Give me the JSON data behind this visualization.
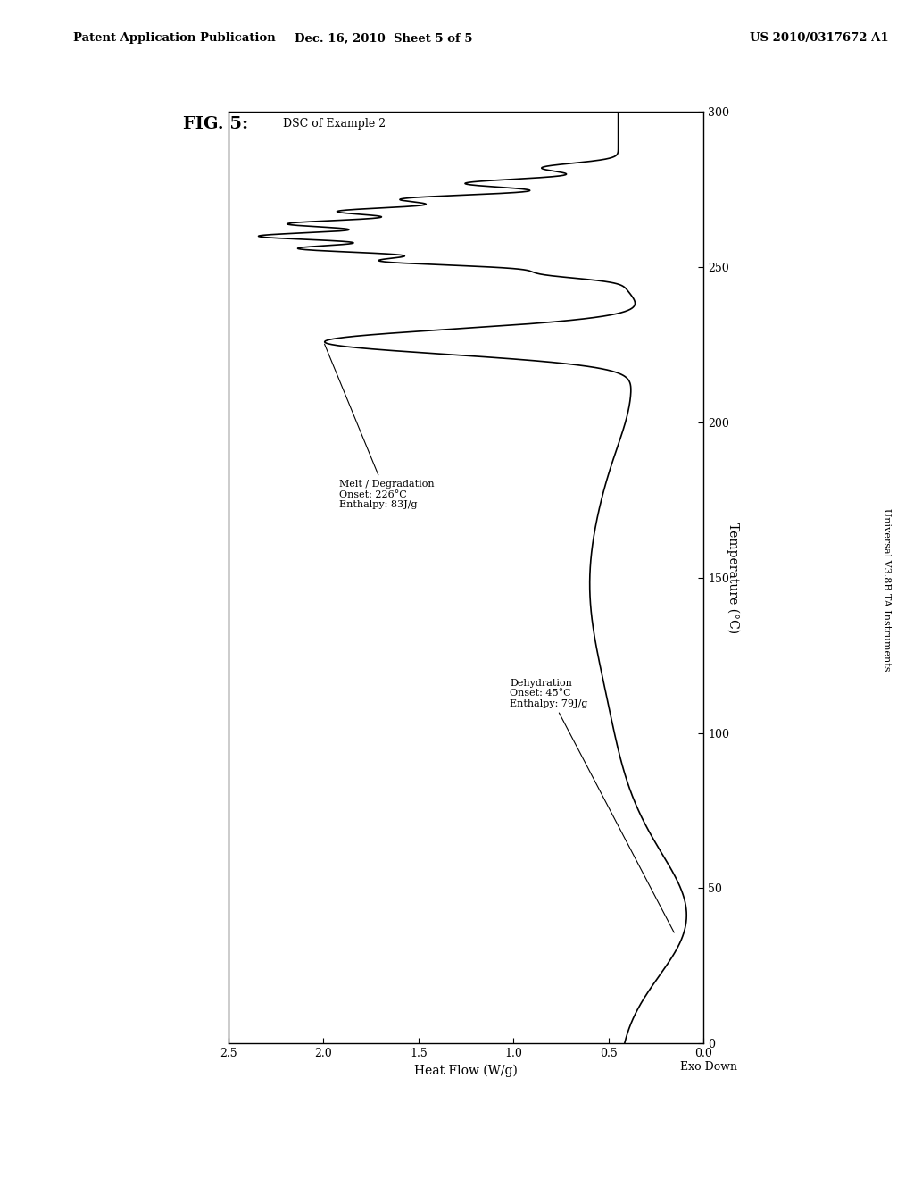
{
  "patent_header_left": "Patent Application Publication",
  "patent_header_mid": "Dec. 16, 2010  Sheet 5 of 5",
  "patent_header_right": "US 2010/0317672 A1",
  "fig_title": "FIG. 5:",
  "fig_subtitle": "DSC of Example 2",
  "right_label": "Universal V3.8B TA Instruments",
  "xlabel_rotated": "Temperature (°C)",
  "ylabel_rotated": "Heat Flow (W/g)",
  "exo_label": "Exo Down",
  "temp_lim": [
    0,
    300
  ],
  "hf_lim": [
    0.0,
    2.5
  ],
  "temp_ticks": [
    0,
    50,
    100,
    150,
    200,
    250,
    300
  ],
  "hf_ticks": [
    0.0,
    0.5,
    1.0,
    1.5,
    2.0,
    2.5
  ],
  "annotation1_lines": [
    "Dehydration",
    "Onset: 45°C",
    "Enthalpy: 79J/g"
  ],
  "annotation2_lines": [
    "Melt / Degradation",
    "Onset: 226°C",
    "Enthalpy: 83J/g"
  ],
  "background_color": "#ffffff",
  "line_color": "#000000",
  "border_color": "#000000"
}
